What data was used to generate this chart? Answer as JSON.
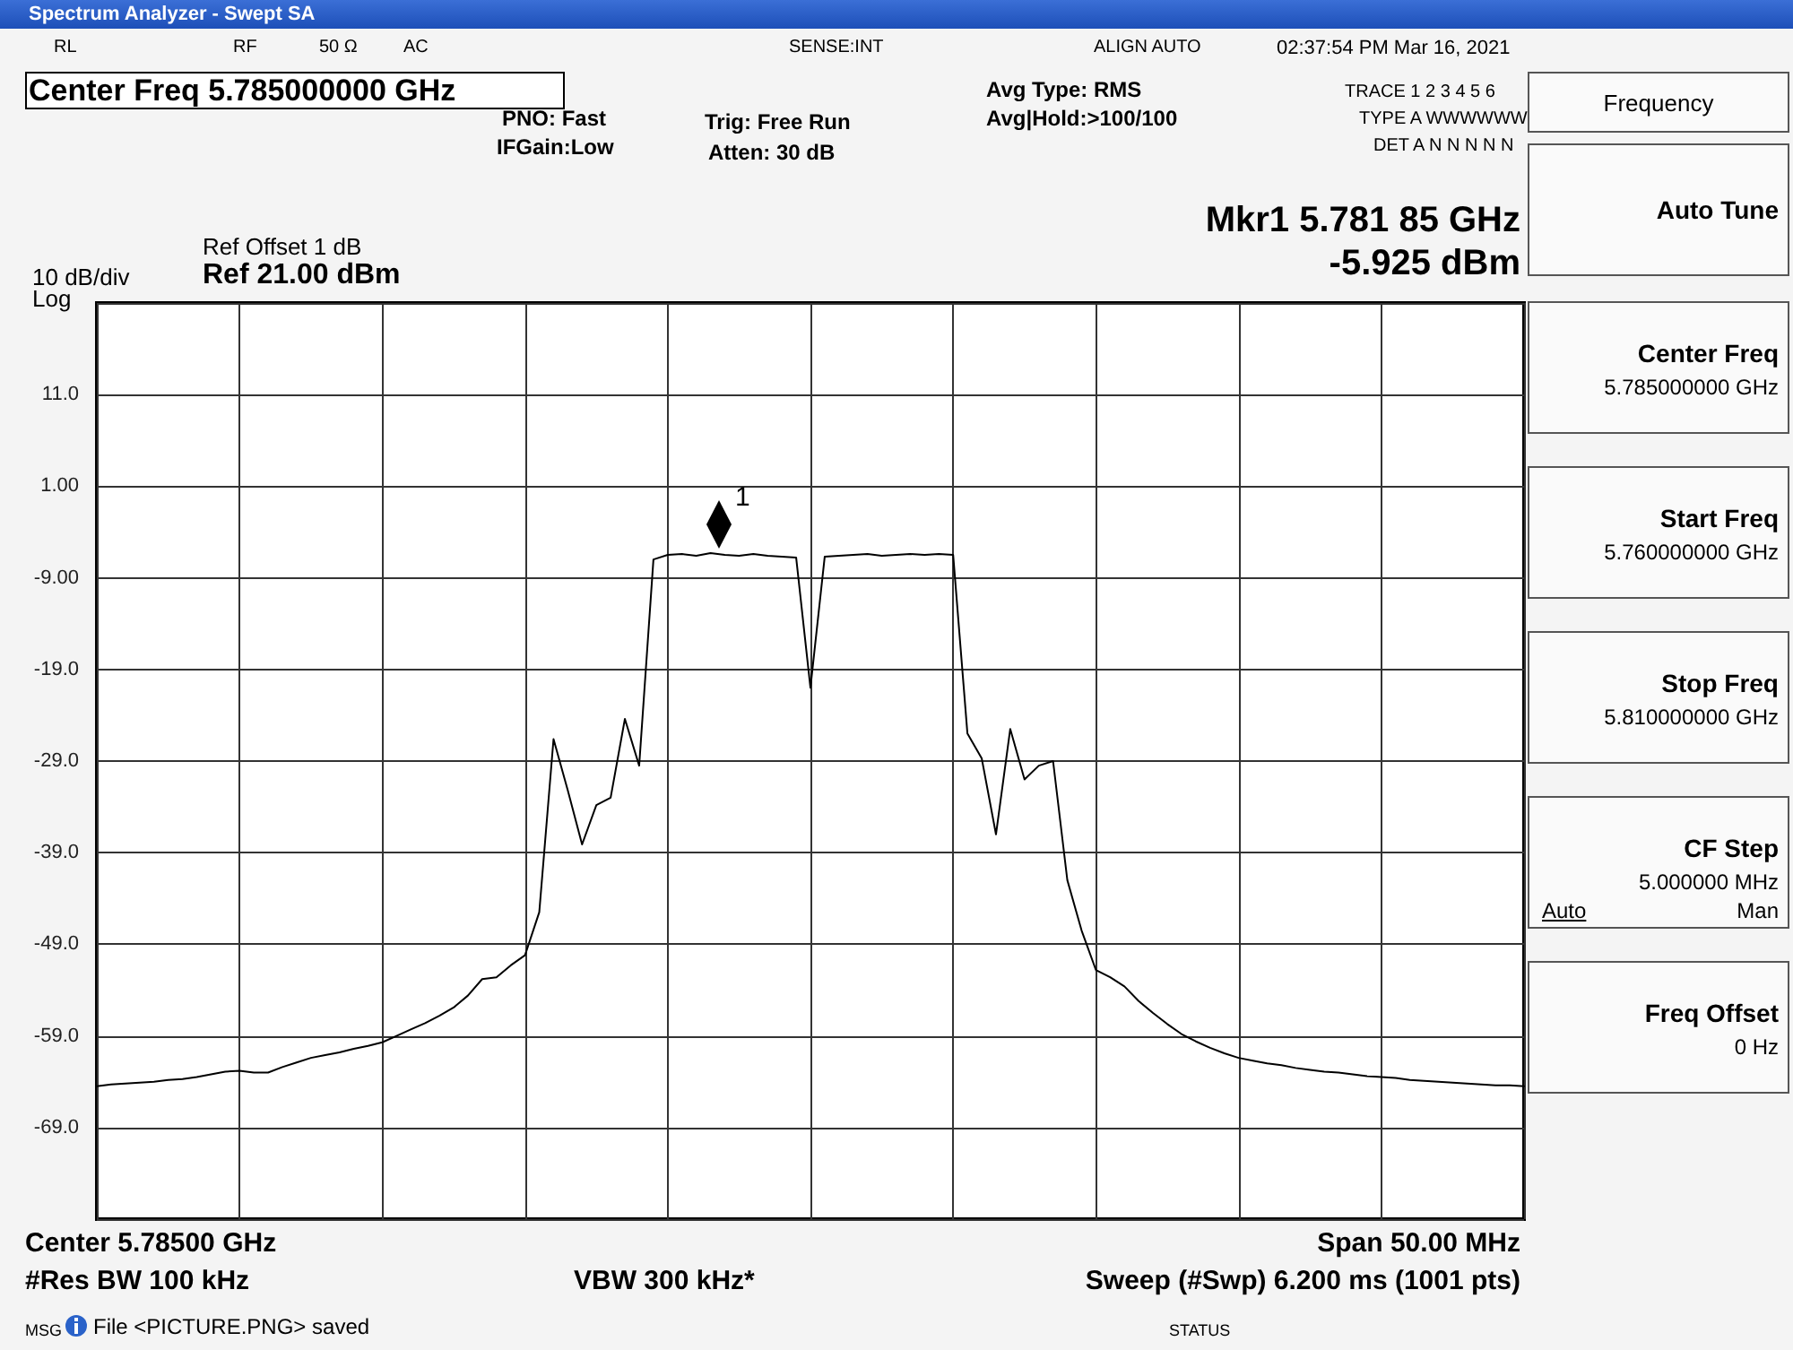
{
  "chart_data": {
    "type": "line",
    "title": "Spectrum Analyzer - Swept SA",
    "annotations": [
      "RL",
      "RF",
      "50 Ω",
      "AC",
      "SENSE:INT",
      "ALIGN AUTO",
      "02:37:54 PM Mar 16, 2021",
      "Center Freq 5.785000000 GHz",
      "PNO: Fast",
      "IFGain:Low",
      "Trig: Free Run",
      "Atten: 30 dB",
      "Avg Type: RMS",
      "Avg|Hold:>100/100",
      "TRACE 1 2 3 4 5 6",
      "TYPE A WWWWWW",
      "DET A N N N N N",
      "Mkr1 5.781 85 GHz",
      "-5.925 dBm",
      "Ref Offset 1 dB",
      "Ref 21.00 dBm",
      "10 dB/div",
      "Log",
      "Center 5.78500 GHz",
      "#Res BW 100 kHz",
      "VBW 300 kHz*",
      "Span 50.00 MHz",
      "Sweep (#Swp) 6.200 ms (1001 pts)",
      "MSG",
      "File <PICTURE.PNG> saved",
      "STATUS",
      "Frequency",
      "Auto Tune",
      "Center Freq",
      "5.785000000 GHz",
      "Start Freq",
      "5.760000000 GHz",
      "Stop Freq",
      "5.810000000 GHz",
      "CF Step",
      "5.000000 MHz",
      "Auto",
      "Man",
      "Freq Offset",
      "0 Hz",
      "1"
    ],
    "categories": [
      null,
      null,
      null,
      null,
      null,
      null,
      null,
      null,
      null,
      null,
      null,
      null,
      null,
      null,
      null,
      null,
      null,
      null,
      null,
      null,
      null,
      null,
      null,
      null,
      null,
      null,
      null,
      null,
      null,
      null,
      null,
      null,
      null,
      null,
      null,
      null,
      null,
      null,
      null,
      null,
      null,
      null,
      null,
      null,
      null,
      null,
      null,
      null,
      null,
      null,
      null,
      null,
      null,
      null,
      null,
      null,
      null,
      null,
      null,
      null,
      null,
      null,
      null,
      null,
      null,
      null,
      null,
      null,
      null,
      null,
      null,
      null,
      null,
      null,
      null,
      null,
      null,
      null,
      null,
      null,
      null,
      null,
      null,
      null,
      null,
      null,
      null,
      null,
      null,
      null,
      null,
      null,
      null,
      null,
      null,
      null,
      null,
      null,
      null,
      null,
      null
    ],
    "series": [
      {
        "color": "#000000",
        "values": [
          -64.5,
          -64.3,
          -64.2,
          -64.1,
          -64.0,
          -63.8,
          -63.7,
          -63.5,
          -63.2,
          -62.9,
          -62.8,
          -63.0,
          -63.0,
          -62.4,
          -61.9,
          -61.4,
          -61.1,
          -60.8,
          -60.4,
          -60.1,
          -59.7,
          -59.0,
          -58.3,
          -57.6,
          -56.8,
          -55.9,
          -54.6,
          -52.8,
          -52.6,
          -51.3,
          -50.2,
          -45.5,
          -26.6,
          -32.2,
          -38.1,
          -33.8,
          -33.0,
          -24.4,
          -29.5,
          -7.0,
          -6.5,
          -6.4,
          -6.6,
          -6.3,
          -6.5,
          -6.6,
          -6.4,
          -6.6,
          -6.7,
          -6.8,
          -21.0,
          -6.7,
          -6.6,
          -6.5,
          -6.4,
          -6.6,
          -6.5,
          -6.4,
          -6.5,
          -6.4,
          -6.5,
          -26.0,
          -28.7,
          -37.0,
          -25.5,
          -31.0,
          -29.5,
          -29.0,
          -42.0,
          -47.5,
          -51.8,
          -52.6,
          -53.6,
          -55.2,
          -56.5,
          -57.7,
          -58.8,
          -59.6,
          -60.3,
          -60.9,
          -61.4,
          -61.7,
          -62.0,
          -62.2,
          -62.5,
          -62.7,
          -62.9,
          -63.0,
          -63.2,
          -63.4,
          -63.5,
          -63.6,
          -63.8,
          -63.9,
          -64.0,
          -64.1,
          -64.2,
          -64.3,
          -64.4,
          -64.4,
          -64.5
        ]
      }
    ],
    "ylim": [
      -79,
      21
    ],
    "yticks": [
      {
        "value": 21,
        "label": null
      },
      {
        "value": 11,
        "label": "11.0"
      },
      {
        "value": 1,
        "label": "1.00"
      },
      {
        "value": -9,
        "label": "-9.00"
      },
      {
        "value": -19,
        "label": "-19.0"
      },
      {
        "value": -29,
        "label": "-29.0"
      },
      {
        "value": -39,
        "label": "-39.0"
      },
      {
        "value": -49,
        "label": "-49.0"
      },
      {
        "value": -59,
        "label": "-59.0"
      },
      {
        "value": -69,
        "label": "-69.0"
      },
      {
        "value": -79,
        "label": null
      }
    ],
    "tick_labels": "y",
    "grid": true,
    "line_style": "solid"
  }
}
